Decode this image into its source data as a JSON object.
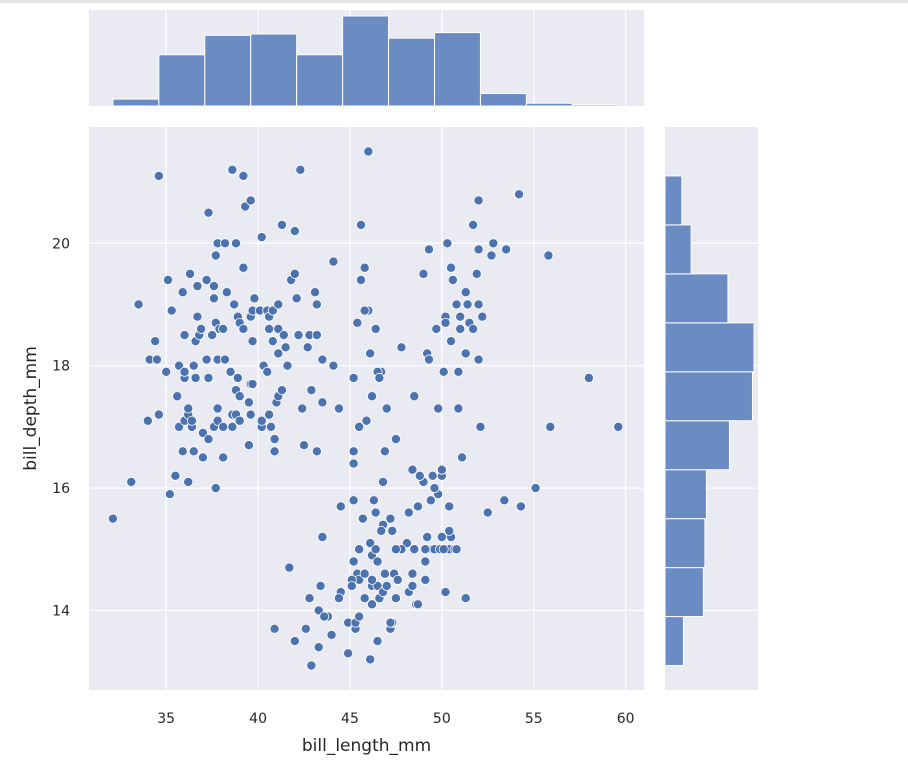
{
  "chart_data": {
    "type": "scatter",
    "title": "",
    "xlabel": "bill_length_mm",
    "ylabel": "bill_depth_mm",
    "xlim": [
      30.8,
      61.0
    ],
    "ylim": [
      12.7,
      21.9
    ],
    "xticks": [
      35,
      40,
      45,
      50,
      55,
      60
    ],
    "yticks": [
      14,
      16,
      18,
      20
    ],
    "grid": true,
    "style": "seaborn-darkgrid",
    "colors": {
      "marker": "#4c72b0",
      "hist_fill": "#6b8bc3",
      "background": "#eaeaf2",
      "grid": "#ffffff"
    },
    "marginal_x_hist": {
      "bin_edges": [
        32.1,
        34.6,
        37.1,
        39.6,
        42.1,
        44.6,
        47.1,
        49.6,
        52.1,
        54.6,
        57.1,
        59.6
      ],
      "counts": [
        5,
        37,
        51,
        52,
        37,
        65,
        49,
        53,
        9,
        2,
        1
      ]
    },
    "marginal_y_hist": {
      "bin_edges": [
        13.1,
        13.9,
        14.7,
        15.5,
        16.3,
        17.1,
        17.9,
        18.7,
        19.5,
        20.3,
        21.1
      ],
      "counts": [
        12,
        25,
        26,
        27,
        42,
        57,
        58,
        41,
        17,
        11
      ]
    },
    "points": [
      [
        32.1,
        15.5
      ],
      [
        33.1,
        16.1
      ],
      [
        33.5,
        19.0
      ],
      [
        34.0,
        17.1
      ],
      [
        34.1,
        18.1
      ],
      [
        34.4,
        18.4
      ],
      [
        34.5,
        18.1
      ],
      [
        34.6,
        17.2
      ],
      [
        34.6,
        21.1
      ],
      [
        35.0,
        17.9
      ],
      [
        35.1,
        19.4
      ],
      [
        35.2,
        15.9
      ],
      [
        35.3,
        18.9
      ],
      [
        35.5,
        16.2
      ],
      [
        35.6,
        17.5
      ],
      [
        35.7,
        17.0
      ],
      [
        35.7,
        18.0
      ],
      [
        35.9,
        16.6
      ],
      [
        35.9,
        19.2
      ],
      [
        36.0,
        17.1
      ],
      [
        36.0,
        17.8
      ],
      [
        36.0,
        18.5
      ],
      [
        36.0,
        17.9
      ],
      [
        36.2,
        16.1
      ],
      [
        36.2,
        17.2
      ],
      [
        36.2,
        17.3
      ],
      [
        36.3,
        19.5
      ],
      [
        36.4,
        17.0
      ],
      [
        36.4,
        17.1
      ],
      [
        36.5,
        16.6
      ],
      [
        36.5,
        18.0
      ],
      [
        36.6,
        17.8
      ],
      [
        36.6,
        18.4
      ],
      [
        36.7,
        18.8
      ],
      [
        36.7,
        19.3
      ],
      [
        36.8,
        18.5
      ],
      [
        36.9,
        18.6
      ],
      [
        37.0,
        16.5
      ],
      [
        37.0,
        16.9
      ],
      [
        37.2,
        18.1
      ],
      [
        37.2,
        19.4
      ],
      [
        37.3,
        16.8
      ],
      [
        37.3,
        17.8
      ],
      [
        37.3,
        20.5
      ],
      [
        37.5,
        18.5
      ],
      [
        37.6,
        17.0
      ],
      [
        37.6,
        19.1
      ],
      [
        37.6,
        19.3
      ],
      [
        37.7,
        16.0
      ],
      [
        37.7,
        18.7
      ],
      [
        37.7,
        19.8
      ],
      [
        37.8,
        17.1
      ],
      [
        37.8,
        17.3
      ],
      [
        37.8,
        18.1
      ],
      [
        37.8,
        20.0
      ],
      [
        37.9,
        18.6
      ],
      [
        38.1,
        16.5
      ],
      [
        38.1,
        17.0
      ],
      [
        38.1,
        18.6
      ],
      [
        38.2,
        18.1
      ],
      [
        38.2,
        20.0
      ],
      [
        38.3,
        19.2
      ],
      [
        38.5,
        17.9
      ],
      [
        38.6,
        17.0
      ],
      [
        38.6,
        17.2
      ],
      [
        38.6,
        21.2
      ],
      [
        38.7,
        19.0
      ],
      [
        38.8,
        17.2
      ],
      [
        38.8,
        17.6
      ],
      [
        38.8,
        20.0
      ],
      [
        38.9,
        17.8
      ],
      [
        38.9,
        18.8
      ],
      [
        39.0,
        17.1
      ],
      [
        39.0,
        17.5
      ],
      [
        39.0,
        18.7
      ],
      [
        39.2,
        18.6
      ],
      [
        39.2,
        19.6
      ],
      [
        39.2,
        21.1
      ],
      [
        39.3,
        20.6
      ],
      [
        39.5,
        16.7
      ],
      [
        39.5,
        17.4
      ],
      [
        39.6,
        17.2
      ],
      [
        39.6,
        17.7
      ],
      [
        39.6,
        18.8
      ],
      [
        39.6,
        20.7
      ],
      [
        39.7,
        17.7
      ],
      [
        39.7,
        18.4
      ],
      [
        39.7,
        18.9
      ],
      [
        39.8,
        19.1
      ],
      [
        40.1,
        18.9
      ],
      [
        40.2,
        17.0
      ],
      [
        40.2,
        17.1
      ],
      [
        40.2,
        20.1
      ],
      [
        40.3,
        18.0
      ],
      [
        40.5,
        17.9
      ],
      [
        40.5,
        18.9
      ],
      [
        40.6,
        17.2
      ],
      [
        40.6,
        18.6
      ],
      [
        40.6,
        18.8
      ],
      [
        40.7,
        17.0
      ],
      [
        40.8,
        18.4
      ],
      [
        40.8,
        18.9
      ],
      [
        40.9,
        16.6
      ],
      [
        40.9,
        16.8
      ],
      [
        41.0,
        17.4
      ],
      [
        41.1,
        17.5
      ],
      [
        41.1,
        18.2
      ],
      [
        41.1,
        18.6
      ],
      [
        41.1,
        19.0
      ],
      [
        41.3,
        17.6
      ],
      [
        41.3,
        20.3
      ],
      [
        41.4,
        18.5
      ],
      [
        41.5,
        18.3
      ],
      [
        41.6,
        18.0
      ],
      [
        41.8,
        19.4
      ],
      [
        42.0,
        19.5
      ],
      [
        42.0,
        20.2
      ],
      [
        42.1,
        19.1
      ],
      [
        42.2,
        18.5
      ],
      [
        42.3,
        21.2
      ],
      [
        42.5,
        16.7
      ],
      [
        42.7,
        18.3
      ],
      [
        42.8,
        18.5
      ],
      [
        42.9,
        17.6
      ],
      [
        43.1,
        19.2
      ],
      [
        43.2,
        18.5
      ],
      [
        43.2,
        16.6
      ],
      [
        43.3,
        14.0
      ],
      [
        43.4,
        14.4
      ],
      [
        43.5,
        18.1
      ],
      [
        44.1,
        18.0
      ],
      [
        44.1,
        19.7
      ],
      [
        44.5,
        14.3
      ],
      [
        45.1,
        14.5
      ],
      [
        45.2,
        14.8
      ],
      [
        45.4,
        14.6
      ],
      [
        45.5,
        14.5
      ],
      [
        45.7,
        15.5
      ],
      [
        45.8,
        14.2
      ],
      [
        46.1,
        15.1
      ],
      [
        46.2,
        14.4
      ],
      [
        46.4,
        15.0
      ],
      [
        46.5,
        14.4
      ],
      [
        46.6,
        14.2
      ],
      [
        46.8,
        14.3
      ],
      [
        47.0,
        14.4
      ],
      [
        47.2,
        13.7
      ],
      [
        47.3,
        13.8
      ],
      [
        47.5,
        14.2
      ],
      [
        47.6,
        14.5
      ],
      [
        48.2,
        14.3
      ],
      [
        48.4,
        14.4
      ],
      [
        48.6,
        14.1
      ],
      [
        48.7,
        14.1
      ],
      [
        49.1,
        14.8
      ],
      [
        49.2,
        15.2
      ],
      [
        49.5,
        15.0
      ],
      [
        49.6,
        15.0
      ],
      [
        49.9,
        15.0
      ],
      [
        50.0,
        15.2
      ],
      [
        50.2,
        14.3
      ],
      [
        50.4,
        15.0
      ],
      [
        50.5,
        15.2
      ],
      [
        50.7,
        15.0
      ],
      [
        50.8,
        15.0
      ],
      [
        51.1,
        16.5
      ],
      [
        51.3,
        14.2
      ],
      [
        52.1,
        17.0
      ],
      [
        52.5,
        15.6
      ],
      [
        53.4,
        15.8
      ],
      [
        54.3,
        15.7
      ],
      [
        55.1,
        16.0
      ],
      [
        55.9,
        17.0
      ],
      [
        59.6,
        17.0
      ],
      [
        46.0,
        21.5
      ],
      [
        45.8,
        19.6
      ],
      [
        45.6,
        20.3
      ],
      [
        46.7,
        17.9
      ],
      [
        47.0,
        17.3
      ],
      [
        49.5,
        16.2
      ],
      [
        50.0,
        16.2
      ],
      [
        50.1,
        17.9
      ],
      [
        50.5,
        19.6
      ],
      [
        50.8,
        19.0
      ],
      [
        51.3,
        19.2
      ],
      [
        51.7,
        20.3
      ],
      [
        52.0,
        18.1
      ],
      [
        52.7,
        19.8
      ],
      [
        53.5,
        19.9
      ],
      [
        49.0,
        19.5
      ],
      [
        49.2,
        18.2
      ],
      [
        49.3,
        19.9
      ],
      [
        49.7,
        18.6
      ],
      [
        50.2,
        18.8
      ],
      [
        50.3,
        20.0
      ],
      [
        50.6,
        19.4
      ],
      [
        50.9,
        17.9
      ],
      [
        51.0,
        18.8
      ],
      [
        51.4,
        19.0
      ],
      [
        51.5,
        18.7
      ],
      [
        51.9,
        19.5
      ],
      [
        52.0,
        19.0
      ],
      [
        52.2,
        18.8
      ],
      [
        54.2,
        20.8
      ],
      [
        55.8,
        19.8
      ],
      [
        58.0,
        17.8
      ],
      [
        45.2,
        17.8
      ],
      [
        45.4,
        18.7
      ],
      [
        45.5,
        17.0
      ],
      [
        45.9,
        17.1
      ],
      [
        46.1,
        18.2
      ],
      [
        46.4,
        18.6
      ],
      [
        46.9,
        16.6
      ],
      [
        47.5,
        16.8
      ],
      [
        48.5,
        17.5
      ],
      [
        49.8,
        17.3
      ],
      [
        50.9,
        17.3
      ],
      [
        51.3,
        18.2
      ],
      [
        52.0,
        20.7
      ],
      [
        46.5,
        17.9
      ],
      [
        43.2,
        19.0
      ],
      [
        43.5,
        17.4
      ],
      [
        46.6,
        17.8
      ],
      [
        44.4,
        17.3
      ],
      [
        46.0,
        18.9
      ],
      [
        45.8,
        18.9
      ],
      [
        46.2,
        17.5
      ],
      [
        45.6,
        19.4
      ],
      [
        47.8,
        18.3
      ],
      [
        49.3,
        18.1
      ],
      [
        50.2,
        18.7
      ],
      [
        50.5,
        18.4
      ],
      [
        51.0,
        18.6
      ],
      [
        51.7,
        18.6
      ],
      [
        52.0,
        19.9
      ],
      [
        52.8,
        20.0
      ],
      [
        42.4,
        17.3
      ],
      [
        44.9,
        13.3
      ],
      [
        46.1,
        13.2
      ],
      [
        48.1,
        15.1
      ],
      [
        45.1,
        14.5
      ],
      [
        46.2,
        14.1
      ],
      [
        47.2,
        15.5
      ],
      [
        48.4,
        16.3
      ],
      [
        46.8,
        15.4
      ],
      [
        50.4,
        15.3
      ],
      [
        45.5,
        13.9
      ],
      [
        43.8,
        13.9
      ],
      [
        49.0,
        16.1
      ],
      [
        43.6,
        13.9
      ],
      [
        47.7,
        15.0
      ],
      [
        46.5,
        13.5
      ],
      [
        46.4,
        15.6
      ],
      [
        48.8,
        16.2
      ],
      [
        47.3,
        15.3
      ],
      [
        42.6,
        13.7
      ],
      [
        44.4,
        14.2
      ],
      [
        42.8,
        14.2
      ],
      [
        42.9,
        13.1
      ],
      [
        46.1,
        15.1
      ],
      [
        44.9,
        13.8
      ],
      [
        50.4,
        15.7
      ],
      [
        44.5,
        15.7
      ],
      [
        48.7,
        15.7
      ],
      [
        45.2,
        15.8
      ],
      [
        46.3,
        15.8
      ],
      [
        46.8,
        16.1
      ],
      [
        49.4,
        15.8
      ],
      [
        48.8,
        16.2
      ],
      [
        45.5,
        15.0
      ],
      [
        47.5,
        14.2
      ],
      [
        43.5,
        15.2
      ],
      [
        47.8,
        15.0
      ],
      [
        49.1,
        15.0
      ],
      [
        49.8,
        15.9
      ],
      [
        47.4,
        14.6
      ],
      [
        46.2,
        14.9
      ],
      [
        45.3,
        13.7
      ],
      [
        46.5,
        14.8
      ],
      [
        43.3,
        13.4
      ],
      [
        46.9,
        14.6
      ],
      [
        48.2,
        15.6
      ],
      [
        45.3,
        13.8
      ],
      [
        50.0,
        16.3
      ],
      [
        45.1,
        14.4
      ],
      [
        47.6,
        14.5
      ],
      [
        46.7,
        15.3
      ],
      [
        42.0,
        13.5
      ],
      [
        41.7,
        14.7
      ],
      [
        40.9,
        13.7
      ],
      [
        47.4,
        14.6
      ],
      [
        45.5,
        13.9
      ],
      [
        46.4,
        15.0
      ],
      [
        48.5,
        15.0
      ],
      [
        44.0,
        13.6
      ],
      [
        50.1,
        15.0
      ],
      [
        49.6,
        16.0
      ],
      [
        49.1,
        14.5
      ],
      [
        45.8,
        14.6
      ],
      [
        47.5,
        15.0
      ],
      [
        46.9,
        16.6
      ],
      [
        48.4,
        14.6
      ],
      [
        46.2,
        14.5
      ],
      [
        47.2,
        13.8
      ],
      [
        45.2,
        16.4
      ],
      [
        47.6,
        14.5
      ],
      [
        45.2,
        16.6
      ],
      [
        49.6,
        16.0
      ]
    ]
  }
}
